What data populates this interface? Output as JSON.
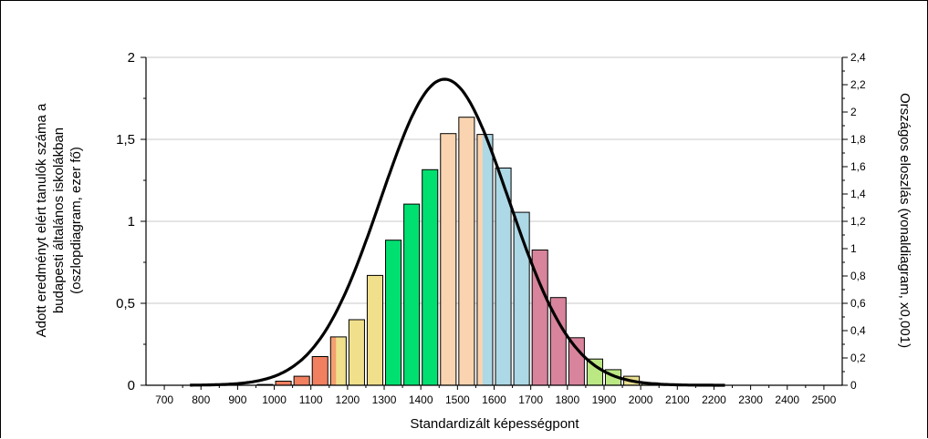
{
  "chart_data": {
    "type": "bar",
    "xlabel": "Standardizált képességpont",
    "ylabel_left": "Adott eredményt elért tanulók száma a budapesti általános iskolákban (oszlopdiagram, ezer fő)",
    "ylabel_left_lines": [
      "Adott eredményt elért tanulók száma a",
      "budapesti általános iskolákban",
      "(oszlopdiagram, ezer fő)"
    ],
    "ylabel_right": "Országos eloszlás (vonaldiagram, x0,001)",
    "x_ticks": [
      700,
      800,
      900,
      1000,
      1100,
      1200,
      1300,
      1400,
      1500,
      1600,
      1700,
      1800,
      1900,
      2000,
      2100,
      2200,
      2300,
      2400,
      2500
    ],
    "xlim": [
      650,
      2550
    ],
    "ylim_left": [
      0,
      2
    ],
    "yticks_left": [
      0,
      0.5,
      1,
      1.5,
      2
    ],
    "yticks_left_labels": [
      "0",
      "0,5",
      "1",
      "1,5",
      "2"
    ],
    "ylim_right": [
      0,
      2.4
    ],
    "yticks_right": [
      0,
      0.2,
      0.4,
      0.6,
      0.8,
      1,
      1.2,
      1.4,
      1.6,
      1.8,
      2,
      2.2,
      2.4
    ],
    "yticks_right_labels": [
      "0",
      "0,2",
      "0,4",
      "0,6",
      "0,8",
      "1",
      "1,2",
      "1,4",
      "1,6",
      "1,8",
      "2",
      "2,2",
      "2,4"
    ],
    "grid": true,
    "bars": [
      {
        "x": 975,
        "value": 0.005,
        "color": "#f08060"
      },
      {
        "x": 1025,
        "value": 0.025,
        "color": "#f08060"
      },
      {
        "x": 1075,
        "value": 0.055,
        "color": "#f08060"
      },
      {
        "x": 1125,
        "value": 0.175,
        "color": "#f08060"
      },
      {
        "x": 1175,
        "value": 0.295,
        "color": "#f0e08c",
        "left_color": "#f5a070"
      },
      {
        "x": 1225,
        "value": 0.4,
        "color": "#f0e08c"
      },
      {
        "x": 1275,
        "value": 0.67,
        "color": "#f0e08c"
      },
      {
        "x": 1325,
        "value": 0.885,
        "color": "#00e070"
      },
      {
        "x": 1375,
        "value": 1.105,
        "color": "#00e070"
      },
      {
        "x": 1425,
        "value": 1.315,
        "color": "#00e070"
      },
      {
        "x": 1475,
        "value": 1.535,
        "color": "#fad4b0"
      },
      {
        "x": 1525,
        "value": 1.635,
        "color": "#fad4b0"
      },
      {
        "x": 1575,
        "value": 1.53,
        "color": "#add8e6",
        "left_color": "#fad4b0"
      },
      {
        "x": 1625,
        "value": 1.325,
        "color": "#add8e6"
      },
      {
        "x": 1675,
        "value": 1.055,
        "color": "#add8e6"
      },
      {
        "x": 1725,
        "value": 0.825,
        "color": "#d8849c"
      },
      {
        "x": 1775,
        "value": 0.535,
        "color": "#d8849c"
      },
      {
        "x": 1825,
        "value": 0.29,
        "color": "#d8849c"
      },
      {
        "x": 1875,
        "value": 0.16,
        "color": "#bce884"
      },
      {
        "x": 1925,
        "value": 0.095,
        "color": "#bce884"
      },
      {
        "x": 1975,
        "value": 0.055,
        "color": "#eae090"
      },
      {
        "x": 2025,
        "value": 0.015,
        "color": "#eae090"
      }
    ],
    "line": {
      "type": "normal-curve",
      "mean": 1465,
      "sd": 175,
      "peak": 2.24,
      "x_range": [
        770,
        2230
      ],
      "color": "#000000"
    }
  }
}
